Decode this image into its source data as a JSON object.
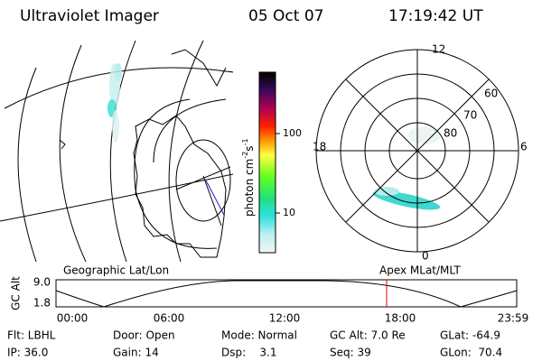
{
  "header": {
    "title": "Ultraviolet Imager",
    "date": "05 Oct 07",
    "time": "17:19:42 UT"
  },
  "colorbar": {
    "label": "photon cm",
    "exp1": "-2",
    "unit2": "s",
    "exp2": "-1",
    "ticks": [
      "100",
      "10"
    ]
  },
  "polar": {
    "mlt_labels": [
      "12",
      "18",
      "6",
      "0"
    ],
    "lat_labels": [
      "60",
      "70",
      "80"
    ]
  },
  "panels": {
    "left": "Geographic Lat/Lon",
    "right": "Apex MLat/MLT"
  },
  "altitude": {
    "axis_label": "GC Alt",
    "yticks": [
      "9.0",
      "1.8"
    ],
    "times": [
      "00:00",
      "06:00",
      "12:00",
      "18:00",
      "23:59"
    ]
  },
  "info": {
    "rows": [
      [
        "Flt: LBHL",
        "Door: Open",
        "Mode: Normal",
        "GC Alt: 7.0 Re",
        "GLat: -64.9"
      ],
      [
        "IP: 36.0",
        "Gain: 14",
        "Dsp:    3.1",
        "Seq: 39",
        "GLon:  70.4"
      ]
    ]
  }
}
